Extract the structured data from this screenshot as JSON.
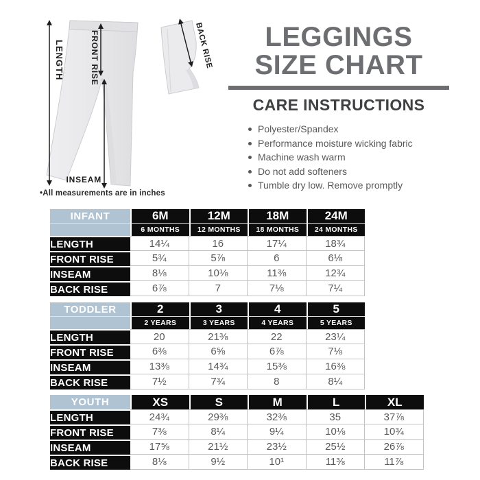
{
  "diagram": {
    "labels": {
      "length": "LENGTH",
      "front_rise": "FRONT RISE",
      "inseam": "INSEAM",
      "back_rise": "BACK RISE"
    },
    "note": "•All measurements are in inches"
  },
  "title": {
    "line1": "LEGGINGS",
    "line2": "SIZE CHART"
  },
  "care": {
    "heading": "CARE INSTRUCTIONS",
    "items": [
      "Polyester/Spandex",
      "Performance moisture wicking fabric",
      "Machine wash warm",
      "Do not add softeners",
      "Tumble dry low. Remove promptly"
    ]
  },
  "tables": [
    {
      "group": "INFANT",
      "columns": [
        {
          "size": "6M",
          "sub": "6 MONTHS"
        },
        {
          "size": "12M",
          "sub": "12 MONTHS"
        },
        {
          "size": "18M",
          "sub": "18 MONTHS"
        },
        {
          "size": "24M",
          "sub": "24 MONTHS"
        }
      ],
      "rows": [
        {
          "label": "LENGTH",
          "values": [
            "14¼",
            "16",
            "17¼",
            "18¾"
          ]
        },
        {
          "label": "FRONT RISE",
          "values": [
            "5¾",
            "5⅞",
            "6",
            "6⅛"
          ]
        },
        {
          "label": "INSEAM",
          "values": [
            "8⅛",
            "10⅛",
            "11⅜",
            "12¾"
          ]
        },
        {
          "label": "BACK RISE",
          "values": [
            "6⅞",
            "7",
            "7⅛",
            "7¼"
          ]
        }
      ]
    },
    {
      "group": "TODDLER",
      "columns": [
        {
          "size": "2",
          "sub": "2 YEARS"
        },
        {
          "size": "3",
          "sub": "3 YEARS"
        },
        {
          "size": "4",
          "sub": "4 YEARS"
        },
        {
          "size": "5",
          "sub": "5 YEARS"
        }
      ],
      "rows": [
        {
          "label": "LENGTH",
          "values": [
            "20",
            "21⅜",
            "22",
            "23¼"
          ]
        },
        {
          "label": "FRONT RISE",
          "values": [
            "6⅜",
            "6⅝",
            "6⅞",
            "7⅛"
          ]
        },
        {
          "label": "INSEAM",
          "values": [
            "13⅜",
            "14¾",
            "15⅜",
            "16⅜"
          ]
        },
        {
          "label": "BACK RISE",
          "values": [
            "7½",
            "7¾",
            "8",
            "8¼"
          ]
        }
      ]
    },
    {
      "group": "YOUTH",
      "columns": [
        {
          "size": "XS"
        },
        {
          "size": "S"
        },
        {
          "size": "M"
        },
        {
          "size": "L"
        },
        {
          "size": "XL"
        }
      ],
      "rows": [
        {
          "label": "LENGTH",
          "values": [
            "24¾",
            "29⅜",
            "32⅜",
            "35",
            "37⅞"
          ]
        },
        {
          "label": "FRONT RISE",
          "values": [
            "7⅜",
            "8¼",
            "9¼",
            "10⅛",
            "10¾"
          ]
        },
        {
          "label": "INSEAM",
          "values": [
            "17⅝",
            "21½",
            "23½",
            "25½",
            "26⅞"
          ]
        },
        {
          "label": "BACK RISE",
          "values": [
            "8⅛",
            "9½",
            "10¹",
            "11⅜",
            "11⅞"
          ]
        }
      ]
    }
  ],
  "colors": {
    "group_blue": "#b0c3d3",
    "table_black": "#0d0d0d",
    "title_gray": "#6d6e71",
    "value_gray": "#58595b"
  }
}
